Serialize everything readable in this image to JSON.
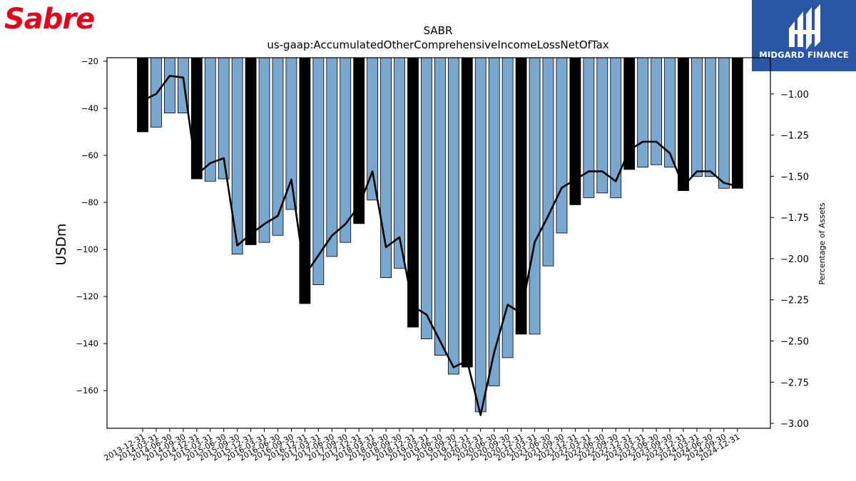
{
  "logos": {
    "left": {
      "text": "Sabre",
      "color": "#e3001b"
    },
    "right": {
      "text": "MIDGARD FINANCE",
      "background": "#2a56a6",
      "icon": "midgard-monogram-icon"
    }
  },
  "chart_data": {
    "type": "bar",
    "title": "SABR",
    "subtitle": "us-gaap:AccumulatedOtherComprehensiveIncomeLossNetOfTax",
    "ylabel": "USDm",
    "y2label": "Percentage of Assets",
    "ylim": [
      -176,
      -18.5
    ],
    "y2lim": [
      -3.03,
      -0.78
    ],
    "yticks": [
      -20,
      -40,
      -60,
      -80,
      -100,
      -120,
      -140,
      -160
    ],
    "y2ticks": [
      "−1.00",
      "−1.25",
      "−1.50",
      "−1.75",
      "−2.00",
      "−2.25",
      "−2.50",
      "−2.75",
      "−3.00"
    ],
    "y2tick_values": [
      -1.0,
      -1.25,
      -1.5,
      -1.75,
      -2.0,
      -2.25,
      -2.5,
      -2.75,
      -3.0
    ],
    "categories": [
      "2013-12-31",
      "2014-03-31",
      "2014-06-30",
      "2014-09-30",
      "2014-12-31",
      "2015-03-31",
      "2015-06-30",
      "2015-09-30",
      "2015-12-31",
      "2016-03-31",
      "2016-06-30",
      "2016-09-30",
      "2016-12-31",
      "2017-03-31",
      "2017-06-30",
      "2017-09-30",
      "2017-12-31",
      "2018-03-31",
      "2018-06-30",
      "2018-09-30",
      "2018-12-31",
      "2019-03-31",
      "2019-06-30",
      "2019-09-30",
      "2019-12-31",
      "2020-03-31",
      "2020-06-30",
      "2020-09-30",
      "2020-12-31",
      "2021-03-31",
      "2021-06-30",
      "2021-09-30",
      "2021-12-31",
      "2022-03-31",
      "2022-06-30",
      "2022-09-30",
      "2022-12-31",
      "2023-03-31",
      "2023-06-30",
      "2023-09-30",
      "2023-12-31",
      "2024-03-31",
      "2024-06-30",
      "2024-09-30",
      "2024-12-31"
    ],
    "series": [
      {
        "kind": "bar",
        "values": [
          -50,
          -48,
          -42,
          -42,
          -70,
          -71,
          -70,
          -102,
          -98,
          -97,
          -94,
          -83,
          -123,
          -115,
          -103,
          -97,
          -89,
          -79,
          -112,
          -108,
          -133,
          -138,
          -145,
          -153,
          -150,
          -169,
          -158,
          -146,
          -136,
          -136,
          -107,
          -93,
          -81,
          -78,
          -76,
          -78,
          -66,
          -65,
          -64,
          -65,
          -75,
          -69,
          -69,
          -74,
          -74
        ],
        "highlight_indices": [
          0,
          4,
          8,
          12,
          16,
          20,
          24,
          28,
          32,
          36,
          40,
          44
        ],
        "color": "#7aa7cf",
        "highlight_color": "#000000"
      },
      {
        "kind": "line",
        "axis": "right",
        "color": "#000000",
        "values": [
          -1.04,
          -1.0,
          -0.89,
          -0.9,
          -1.49,
          -1.42,
          -1.39,
          -1.92,
          -1.85,
          -1.79,
          -1.74,
          -1.52,
          -2.1,
          -1.98,
          -1.86,
          -1.79,
          -1.68,
          -1.47,
          -1.93,
          -1.87,
          -2.29,
          -2.34,
          -2.5,
          -2.66,
          -2.62,
          -2.95,
          -2.57,
          -2.28,
          -2.33,
          -1.9,
          -1.74,
          -1.57,
          -1.52,
          -1.47,
          -1.47,
          -1.53,
          -1.34,
          -1.29,
          -1.29,
          -1.36,
          -1.56,
          -1.47,
          -1.47,
          -1.54,
          -1.56
        ]
      }
    ]
  }
}
